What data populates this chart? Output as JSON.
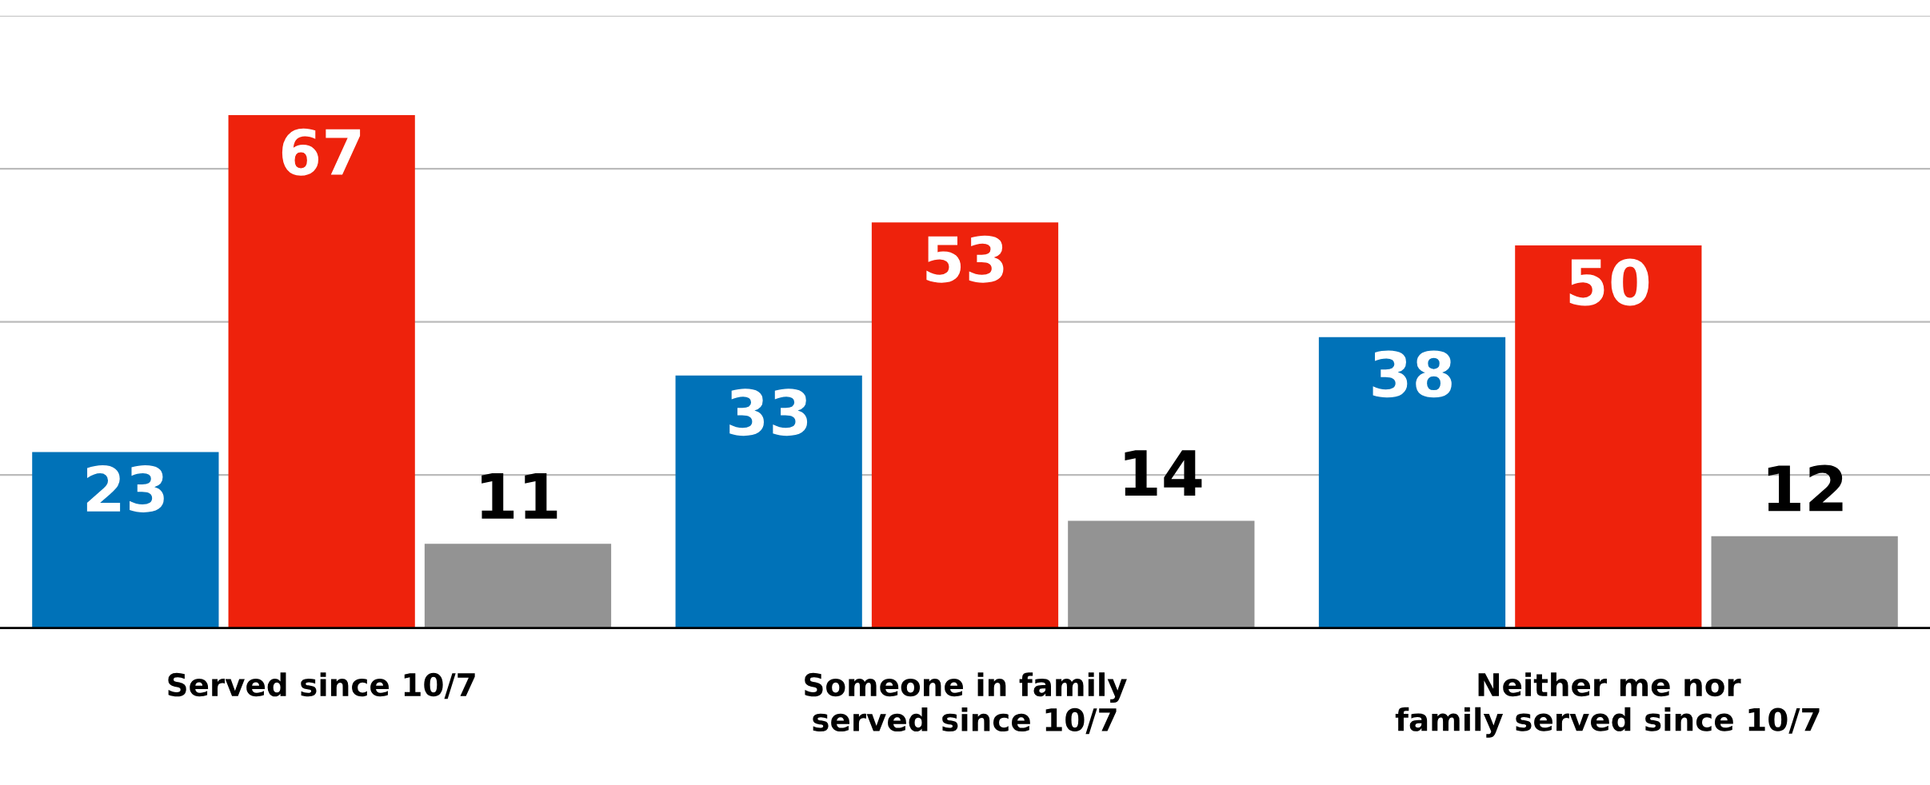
{
  "chart_data": {
    "type": "bar",
    "categories": [
      "Served since 10/7",
      "Someone in family\nserved since 10/7",
      "Neither me nor\nfamily served since 10/7"
    ],
    "series": [
      {
        "color": "#0072b8",
        "values": [
          23,
          33,
          38
        ]
      },
      {
        "color": "#ee220c",
        "values": [
          67,
          53,
          50
        ]
      },
      {
        "color": "#939393",
        "values": [
          11,
          14,
          12
        ]
      }
    ],
    "ylim": [
      0,
      80
    ],
    "yticks": [
      {
        "value": 0,
        "label": null
      },
      {
        "value": 20,
        "label": null
      },
      {
        "value": 40,
        "label": null
      },
      {
        "value": 60,
        "label": null
      },
      {
        "value": 80,
        "label": null
      }
    ],
    "grid": "y",
    "tick_labels": "x",
    "data_labels": true
  }
}
